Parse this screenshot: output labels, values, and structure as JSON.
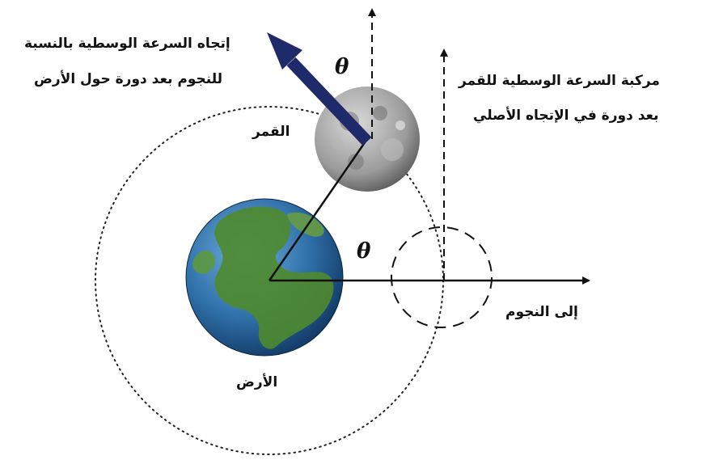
{
  "labels": {
    "velocity_direction_line1": "إتجاه السرعة الوسطية بالنسبة",
    "velocity_direction_line2": "للنجوم بعد دورة حول الأرض",
    "component_line1": "مركبة السرعة الوسطية للقمر",
    "component_line2": "بعد دورة في الإتجاه الأصلي",
    "moon": "القمر",
    "earth": "الأرض",
    "to_stars": "إلى النجوم",
    "theta_top": "θ",
    "theta_bottom": "θ"
  },
  "colors": {
    "velocity_arrow": "#1f2a6b",
    "lines": "#111111",
    "earth_ocean": "#2f6fa8",
    "earth_land": "#4f8a2e",
    "moon": "#9a9a9a"
  }
}
